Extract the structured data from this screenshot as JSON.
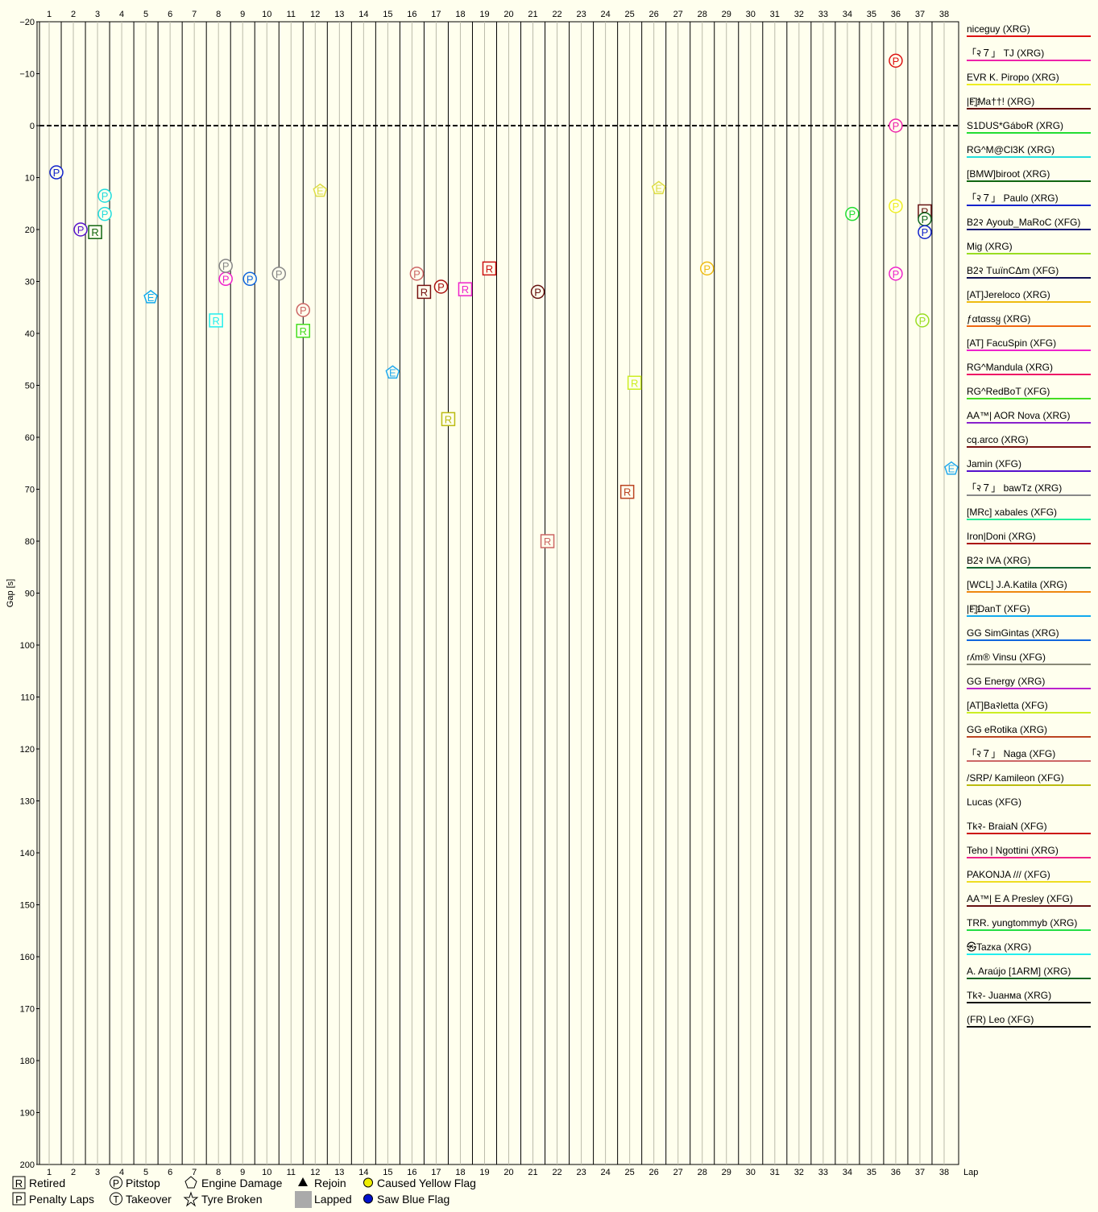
{
  "chart_data": {
    "type": "line",
    "xlabel": "Lap",
    "ylabel": "Gap [s]",
    "x_ticks": [
      1,
      2,
      3,
      4,
      5,
      6,
      7,
      8,
      9,
      10,
      11,
      12,
      13,
      14,
      15,
      16,
      17,
      18,
      19,
      20,
      21,
      22,
      23,
      24,
      25,
      26,
      27,
      28,
      29,
      30,
      31,
      32,
      33,
      34,
      35,
      36,
      37,
      38
    ],
    "y_ticks": [
      -20,
      -10,
      0,
      10,
      20,
      30,
      40,
      50,
      60,
      70,
      80,
      90,
      100,
      110,
      120,
      130,
      140,
      150,
      160,
      170,
      180,
      190,
      200
    ],
    "xlim": [
      0.6,
      38.6
    ],
    "ylim": [
      -20,
      200
    ],
    "y_inverted": true,
    "leader_line": 0,
    "grid": true,
    "drivers": [
      {
        "name": "niceguy (XRG)",
        "color": "#dd1111"
      },
      {
        "name": "「२７」 TJ (XRG)",
        "color": "#ee22aa"
      },
      {
        "name": "EVR K. Piropo (XRG)",
        "color": "#eeee22"
      },
      {
        "name": "|F҈|Ma††! (XRG)",
        "color": "#661111"
      },
      {
        "name": "S1DUS*GáboR (XRG)",
        "color": "#22dd33"
      },
      {
        "name": "RG^M@Cl3K (XRG)",
        "color": "#22dddd"
      },
      {
        "name": "[BMW]biroot (XRG)",
        "color": "#116611"
      },
      {
        "name": "「२７」 Paulo (XRG)",
        "color": "#1122cc"
      },
      {
        "name": "B2२ Ayoub_MaRoC (XFG)",
        "color": "#111177"
      },
      {
        "name": "Mig (XRG)",
        "color": "#99dd22"
      },
      {
        "name": "B2२ TɯïnCΔm (XFG)",
        "color": "#111155"
      },
      {
        "name": "[AT]Jereloco (XRG)",
        "color": "#eebb11"
      },
      {
        "name": "ƒαtαssყ (XRG)",
        "color": "#ee6611"
      },
      {
        "name": "[AT] FacuSpin (XFG)",
        "color": "#ee22cc"
      },
      {
        "name": "RG^Mandula (XRG)",
        "color": "#ee1166"
      },
      {
        "name": "RG^RedBoT (XFG)",
        "color": "#44dd22"
      },
      {
        "name": "AA™| AOR Nova (XRG)",
        "color": "#8822cc"
      },
      {
        "name": "cq.arco (XRG)",
        "color": "#771111"
      },
      {
        "name": "Jamin (XFG)",
        "color": "#5511cc"
      },
      {
        "name": "「२７」 bawTz (XRG)",
        "color": "#888888"
      },
      {
        "name": "[MRc] xabales (XFG)",
        "color": "#22ee99"
      },
      {
        "name": "Iron|Doni (XRG)",
        "color": "#aa1111"
      },
      {
        "name": "B2२ IVA (XRG)",
        "color": "#116633"
      },
      {
        "name": "[WCL] J.A.Katila (XRG)",
        "color": "#ee8811"
      },
      {
        "name": "|F҈|DanT (XFG)",
        "color": "#11aaee"
      },
      {
        "name": "GG SimGintas (XRG)",
        "color": "#1166dd"
      },
      {
        "name": "ɾʎm® Vinsu (XFG)",
        "color": "#888877"
      },
      {
        "name": "GG Energy (XRG)",
        "color": "#bb22cc"
      },
      {
        "name": "[AT]Ba२letta (XFG)",
        "color": "#ccee22"
      },
      {
        "name": "GG eRotika (XRG)",
        "color": "#bb4422"
      },
      {
        "name": "「२７」 Naga (XFG)",
        "color": "#cc6666"
      },
      {
        "name": "/SRP/ Kamileon (XFG)",
        "color": "#bbbb11"
      },
      {
        "name": "Lucas (XFG)",
        "color": ""
      },
      {
        "name": "Tk२- BraiaN (XFG)",
        "color": "#cc1111"
      },
      {
        "name": "Teho | Ngottini (XRG)",
        "color": "#ee2288"
      },
      {
        "name": "PAKONJA /// (XFG)",
        "color": "#eedd22"
      },
      {
        "name": "AA™| E A Presley (XFG)",
        "color": "#661111"
      },
      {
        "name": "TRR. yungtommyb (XRG)",
        "color": "#22dd44"
      },
      {
        "name": "㉿Tazка (XRG)",
        "color": "#22eeee"
      },
      {
        "name": "A. Araújo [1ARM] (XRG)",
        "color": "#116622"
      },
      {
        "name": "Tk२- Juaнма (XRG)",
        "color": "#111111"
      },
      {
        "name": "(FR) Leo (XFG)",
        "color": "#111111"
      }
    ],
    "markers": [
      {
        "label": "P",
        "color": "#dd1111",
        "lap": 36,
        "gap": -12.5
      },
      {
        "label": "P",
        "color": "#ee22aa",
        "lap": 36,
        "gap": 0
      },
      {
        "label": "P",
        "color": "#1122cc",
        "lap": 1.3,
        "gap": 9
      },
      {
        "label": "P",
        "color": "#22dddd",
        "lap": 3.3,
        "gap": 13.5
      },
      {
        "label": "P",
        "color": "#22dddd",
        "lap": 3.3,
        "gap": 17
      },
      {
        "label": "P",
        "color": "#5511cc",
        "lap": 2.3,
        "gap": 20
      },
      {
        "label": "R",
        "color": "#116611",
        "lap": 2.9,
        "gap": 20.5
      },
      {
        "label": "P",
        "color": "#ee22cc",
        "lap": 8.3,
        "gap": 29.5
      },
      {
        "label": "P",
        "color": "#1166dd",
        "lap": 9.3,
        "gap": 29.5
      },
      {
        "label": "P",
        "color": "#888888",
        "lap": 8.3,
        "gap": 27
      },
      {
        "label": "P",
        "color": "#888888",
        "lap": 10.5,
        "gap": 28.5
      },
      {
        "label": "P",
        "color": "#cc6666",
        "lap": 11.5,
        "gap": 35.5
      },
      {
        "label": "R",
        "color": "#44dd22",
        "lap": 11.5,
        "gap": 39.5
      },
      {
        "label": "R",
        "color": "#22eeee",
        "lap": 7.9,
        "gap": 37.5
      },
      {
        "label": "P",
        "color": "#cc6666",
        "lap": 16.2,
        "gap": 28.5
      },
      {
        "label": "R",
        "color": "#771111",
        "lap": 16.5,
        "gap": 32
      },
      {
        "label": "P",
        "color": "#aa1111",
        "lap": 17.2,
        "gap": 31
      },
      {
        "label": "R",
        "color": "#ee22cc",
        "lap": 18.2,
        "gap": 31.5
      },
      {
        "label": "R",
        "color": "#cc1111",
        "lap": 19.2,
        "gap": 27.5
      },
      {
        "label": "P",
        "color": "#661111",
        "lap": 21.2,
        "gap": 32
      },
      {
        "label": "P",
        "color": "#eebb11",
        "lap": 28.2,
        "gap": 27.5
      },
      {
        "label": "P",
        "color": "#22dd33",
        "lap": 34.2,
        "gap": 17
      },
      {
        "label": "P",
        "color": "#eeee22",
        "lap": 36,
        "gap": 15.5
      },
      {
        "label": "R",
        "color": "#661111",
        "lap": 37.2,
        "gap": 16.5
      },
      {
        "label": "P",
        "color": "#116622",
        "lap": 37.2,
        "gap": 18
      },
      {
        "label": "P",
        "color": "#1122cc",
        "lap": 37.2,
        "gap": 20.5
      },
      {
        "label": "P",
        "color": "#ee22cc",
        "lap": 36,
        "gap": 28.5
      },
      {
        "label": "P",
        "color": "#99dd22",
        "lap": 37.1,
        "gap": 37.5
      },
      {
        "label": "R",
        "color": "#ccee22",
        "lap": 25.2,
        "gap": 49.5
      },
      {
        "label": "R",
        "color": "#bbbb11",
        "lap": 17.5,
        "gap": 56.5
      },
      {
        "label": "R",
        "color": "#bb4422",
        "lap": 24.9,
        "gap": 70.5
      },
      {
        "label": "R",
        "color": "#cc6666",
        "lap": 21.6,
        "gap": 80
      },
      {
        "label": "E",
        "color": "#11aaee",
        "lap": 5.2,
        "gap": 33
      },
      {
        "label": "E",
        "color": "#22aaee",
        "lap": 15.2,
        "gap": 47.5
      },
      {
        "label": "E",
        "color": "#dddd44",
        "lap": 12.2,
        "gap": 12.5
      },
      {
        "label": "E",
        "color": "#dddd44",
        "lap": 26.2,
        "gap": 12
      },
      {
        "label": "E",
        "color": "#22aaee",
        "lap": 38.3,
        "gap": 66
      }
    ],
    "key": [
      {
        "symbol": "R",
        "label": "Retired",
        "kind": "square"
      },
      {
        "symbol": "P",
        "label": "Penalty Laps",
        "kind": "square"
      },
      {
        "symbol": "P",
        "label": "Pitstop",
        "kind": "circle"
      },
      {
        "symbol": "T",
        "label": "Takeover",
        "kind": "circle"
      },
      {
        "symbol": "",
        "label": "Engine Damage",
        "kind": "pentagon"
      },
      {
        "symbol": "",
        "label": "Tyre Broken",
        "kind": "star"
      },
      {
        "symbol": "",
        "label": "Rejoin",
        "kind": "triangle"
      },
      {
        "symbol": "",
        "label": "Lapped",
        "kind": "gray"
      },
      {
        "symbol": "",
        "label": "Caused Yellow Flag",
        "kind": "yellow-dot"
      },
      {
        "symbol": "",
        "label": "Saw Blue Flag",
        "kind": "blue-dot"
      }
    ]
  }
}
